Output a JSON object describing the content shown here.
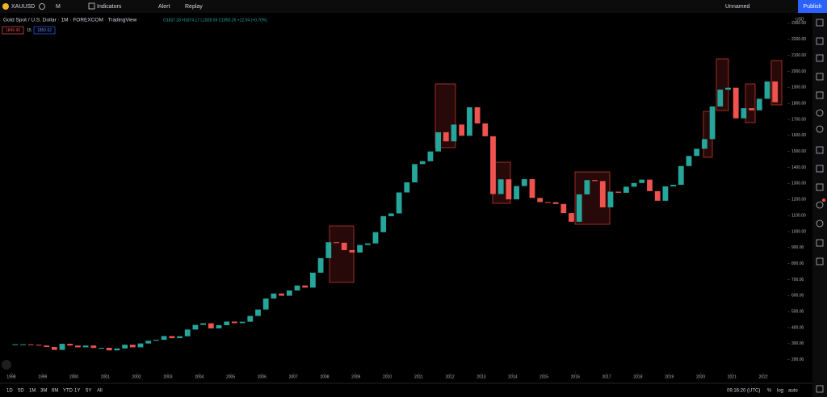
{
  "ui": {
    "symbol": "XAUUSD",
    "interval": "M",
    "indicators": "Indicators",
    "alert": "Alert",
    "replay": "Replay",
    "layout_name": "Unnamed",
    "publish": "Publish",
    "legend_title": "Gold Spot / U.S. Dollar · 1M · FOREXCOM · TradingView",
    "ohlc": "O1837.33 H1874.17 L1828.59 C1850.26 +12.94 (+0.70%)",
    "bid": "1849.90",
    "spread": "15",
    "ask": "1850.62",
    "currency": "USD",
    "ranges": [
      "1D",
      "5D",
      "1M",
      "3M",
      "6M",
      "YTD",
      "1Y",
      "5Y",
      "All"
    ],
    "clock": "09:16:20 (UTC)",
    "percent": "%",
    "log": "log",
    "auto": "auto"
  },
  "chart_data": {
    "type": "candlestick",
    "up_color": "#26a69a",
    "down_color": "#ef5350",
    "x": [
      1998.125,
      1998.375,
      1998.625,
      1998.875,
      1999.125,
      1999.375,
      1999.625,
      1999.875,
      2000.125,
      2000.375,
      2000.625,
      2000.875,
      2001.125,
      2001.375,
      2001.625,
      2001.875,
      2002.125,
      2002.375,
      2002.625,
      2002.875,
      2003.125,
      2003.375,
      2003.625,
      2003.875,
      2004.125,
      2004.375,
      2004.625,
      2004.875,
      2005.125,
      2005.375,
      2005.625,
      2005.875,
      2006.125,
      2006.375,
      2006.625,
      2006.875,
      2007.125,
      2007.375,
      2007.625,
      2007.875,
      2008.125,
      2008.375,
      2008.625,
      2008.875,
      2009.125,
      2009.375,
      2009.625,
      2009.875,
      2010.125,
      2010.375,
      2010.625,
      2010.875,
      2011.125,
      2011.375,
      2011.625,
      2011.875,
      2012.125,
      2012.375,
      2012.625,
      2012.875,
      2013.125,
      2013.375,
      2013.625,
      2013.875,
      2014.125,
      2014.375,
      2014.625,
      2014.875,
      2015.125,
      2015.375,
      2015.625,
      2015.875,
      2016.125,
      2016.375,
      2016.625,
      2016.875,
      2017.125,
      2017.375,
      2017.625,
      2017.875,
      2018.125,
      2018.375,
      2018.625,
      2018.875,
      2019.125,
      2019.375,
      2019.625,
      2019.875,
      2020.125,
      2020.375,
      2020.625,
      2020.875,
      2021.125,
      2021.375,
      2021.625,
      2021.875,
      2022.125,
      2022.375
    ],
    "close": [
      296,
      296,
      293,
      288,
      279,
      261,
      299,
      288,
      277,
      288,
      273,
      274,
      258,
      270,
      293,
      277,
      301,
      318,
      324,
      347,
      334,
      346,
      388,
      417,
      427,
      395,
      415,
      438,
      428,
      437,
      473,
      513,
      582,
      613,
      599,
      632,
      663,
      650,
      743,
      834,
      933,
      930,
      884,
      869,
      916,
      926,
      996,
      1096,
      1113,
      1244,
      1307,
      1421,
      1439,
      1500,
      1620,
      1563,
      1668,
      1598,
      1776,
      1675,
      1595,
      1234,
      1326,
      1201,
      1284,
      1327,
      1210,
      1184,
      1183,
      1172,
      1115,
      1061,
      1232,
      1321,
      1315,
      1151,
      1249,
      1242,
      1280,
      1303,
      1324,
      1252,
      1192,
      1282,
      1292,
      1409,
      1472,
      1517,
      1577,
      1781,
      1886,
      1898,
      1707,
      1770,
      1757,
      1829,
      1937,
      1807
    ],
    "xlim": [
      1997.64,
      2022.77
    ],
    "xticks": [
      1998,
      1999,
      2000,
      2001,
      2002,
      2003,
      2004,
      2005,
      2006,
      2007,
      2008,
      2009,
      2010,
      2011,
      2012,
      2013,
      2014,
      2015,
      2016,
      2017,
      2018,
      2019,
      2020,
      2021,
      2022
    ],
    "ylim": [
      128,
      2355
    ],
    "yticks": [
      {
        "value": 200,
        "label": "200.00"
      },
      {
        "value": 300,
        "label": "300.00"
      },
      {
        "value": 400,
        "label": "400.00"
      },
      {
        "value": 500,
        "label": "500.00"
      },
      {
        "value": 600,
        "label": "600.00"
      },
      {
        "value": 700,
        "label": "700.00"
      },
      {
        "value": 800,
        "label": "800.00"
      },
      {
        "value": 900,
        "label": "900.00"
      },
      {
        "value": 1000,
        "label": "1000.00"
      },
      {
        "value": 1100,
        "label": "1100.00"
      },
      {
        "value": 1200,
        "label": "1200.00"
      },
      {
        "value": 1300,
        "label": "1300.00"
      },
      {
        "value": 1400,
        "label": "1400.00"
      },
      {
        "value": 1500,
        "label": "1500.00"
      },
      {
        "value": 1600,
        "label": "1600.00"
      },
      {
        "value": 1700,
        "label": "1700.00"
      },
      {
        "value": 1800,
        "label": "1800.00"
      },
      {
        "value": 1900,
        "label": "1900.00"
      },
      {
        "value": 2000,
        "label": "2000.00"
      },
      {
        "value": 2100,
        "label": "2100.00"
      },
      {
        "value": 2200,
        "label": "2200.00"
      },
      {
        "value": 2300,
        "label": "2300.00"
      }
    ]
  }
}
